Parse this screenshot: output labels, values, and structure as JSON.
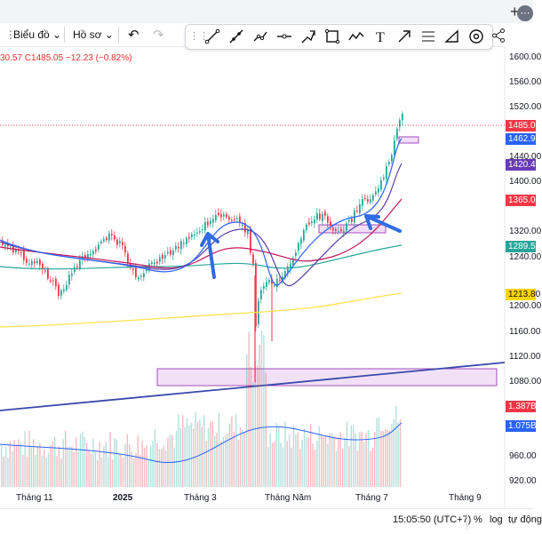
{
  "toolbar": {
    "chart_menu": "Biểu đồ",
    "profile_menu": "Hồ sơ"
  },
  "legend": {
    "text": "30.57 C1485.05 −12.23 (−0.82%)"
  },
  "price_axis": {
    "labels": [
      "1600.00",
      "1560.00",
      "1520.00",
      "1440.00",
      "1400.00",
      "1320.00",
      "1240.00",
      "1200.00",
      "1160.00",
      "1120.00",
      "1080.00",
      "960.00",
      "920.00"
    ]
  },
  "last_value_tags": [
    {
      "text": "1485.05",
      "color": "#f23645"
    },
    {
      "text": "1462.90",
      "color": "#2962ff"
    },
    {
      "text": "1420.40",
      "color": "#673ab7"
    },
    {
      "text": "1365.00",
      "color": "#f23645"
    },
    {
      "text": "1289.50",
      "color": "#26a69a"
    },
    {
      "text": "1213.80",
      "color": "#ffd600"
    },
    {
      "text": "1.387B",
      "color": "#f23645"
    },
    {
      "text": "1.075B",
      "color": "#2962ff"
    }
  ],
  "time_axis": {
    "labels": [
      "Tháng 11",
      "2025",
      "Tháng 3",
      "Tháng Năm",
      "Tháng 7",
      "Tháng 9"
    ]
  },
  "bottom_bar": {
    "time": "15:05:50 (UTC+7)",
    "percent": "%",
    "log": "log",
    "auto": "tự động"
  },
  "colors": {
    "up": "#26a69a",
    "down": "#f23645",
    "ma_blue": "#2962ff",
    "ma_purple": "#5b3fa8",
    "ma_red": "#c2185b",
    "ma_teal": "#26a69a",
    "ma_yellow": "#ffe24d",
    "zone": "#e8c6ef",
    "trendline": "#3949ab",
    "arrow": "#2f6ce5"
  }
}
